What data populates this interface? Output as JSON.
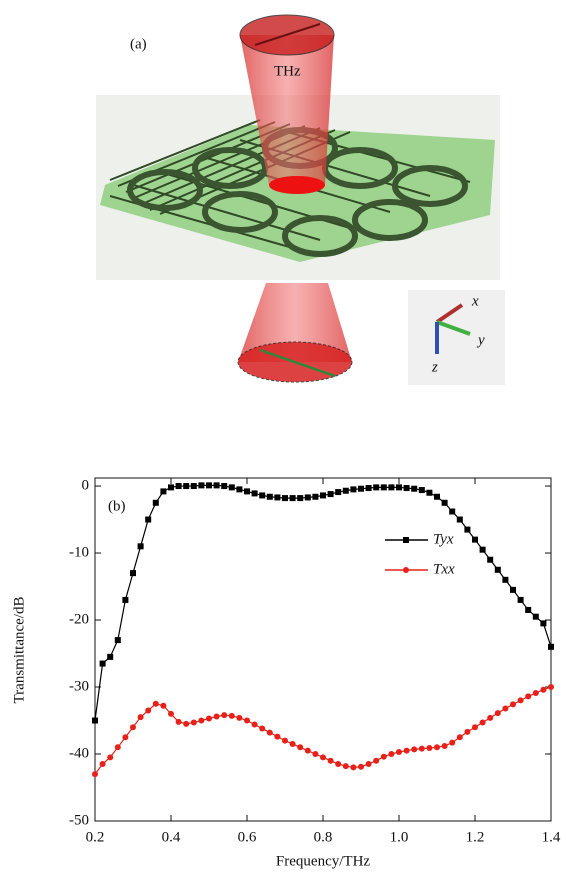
{
  "diagram": {
    "panel_label": "(a)",
    "beam_label": "THz",
    "axes": [
      "x",
      "y",
      "z"
    ]
  },
  "chart_data": {
    "type": "line",
    "panel_label": "(b)",
    "x_label": "Frequency/THz",
    "y_label": "Transmittance/dB",
    "xlim": [
      0.2,
      1.4
    ],
    "ylim": [
      -50,
      1.2
    ],
    "xticks": [
      0.2,
      0.4,
      0.6,
      0.8,
      {
        "value": 1,
        "label": "1.0"
      },
      1.2,
      1.4
    ],
    "yticks": [
      0,
      -10,
      -20,
      -30,
      -40,
      -50
    ],
    "legend": "upper right",
    "x": [
      0.2,
      0.22,
      0.24,
      0.26,
      0.28,
      0.3,
      0.32,
      0.34,
      0.36,
      0.38,
      0.4,
      0.42,
      0.44,
      0.46,
      0.48,
      0.5,
      0.52,
      0.54,
      0.56,
      0.58,
      0.6,
      0.62,
      0.64,
      0.66,
      0.68,
      0.7,
      0.72,
      0.74,
      0.76,
      0.78,
      0.8,
      0.82,
      0.84,
      0.86,
      0.88,
      0.9,
      0.92,
      0.94,
      0.96,
      0.98,
      1.0,
      1.02,
      1.04,
      1.06,
      1.08,
      1.1,
      1.12,
      1.14,
      1.16,
      1.18,
      1.2,
      1.22,
      1.24,
      1.26,
      1.28,
      1.3,
      1.32,
      1.34,
      1.36,
      1.38,
      1.4
    ],
    "series": [
      {
        "name": "Tyx",
        "color": "#000000",
        "marker": "square",
        "values": [
          -35,
          -26.5,
          -25.5,
          -23,
          -17,
          -13,
          -9,
          -5,
          -2.5,
          -0.8,
          -0.2,
          0,
          0,
          0,
          0.1,
          0.1,
          0.1,
          0,
          -0.2,
          -0.5,
          -0.8,
          -1.1,
          -1.4,
          -1.6,
          -1.7,
          -1.8,
          -1.8,
          -1.8,
          -1.7,
          -1.6,
          -1.4,
          -1.2,
          -0.9,
          -0.7,
          -0.5,
          -0.4,
          -0.3,
          -0.2,
          -0.2,
          -0.2,
          -0.2,
          -0.3,
          -0.4,
          -0.6,
          -1.0,
          -1.6,
          -2.5,
          -3.8,
          -5,
          -6.5,
          -8,
          -9.5,
          -11,
          -12.5,
          -14,
          -15.5,
          -17,
          -18.5,
          -19.5,
          -20.5,
          -24
        ]
      },
      {
        "name": "Txx",
        "color": "#e8201a",
        "marker": "circle",
        "values": [
          -43,
          -41.5,
          -40.5,
          -39,
          -37.5,
          -36,
          -34.5,
          -33.5,
          -32.5,
          -32.8,
          -34,
          -35.2,
          -35.5,
          -35.3,
          -35,
          -34.7,
          -34.4,
          -34.2,
          -34.3,
          -34.6,
          -35,
          -35.6,
          -36.2,
          -36.8,
          -37.4,
          -38,
          -38.5,
          -39,
          -39.5,
          -40,
          -40.5,
          -41,
          -41.5,
          -41.8,
          -42,
          -41.9,
          -41.5,
          -41,
          -40.4,
          -40,
          -39.7,
          -39.5,
          -39.3,
          -39.2,
          -39.1,
          -39,
          -38.8,
          -38.3,
          -37.5,
          -36.7,
          -36,
          -35.3,
          -34.6,
          -33.9,
          -33.2,
          -32.6,
          -32,
          -31.4,
          -30.9,
          -30.4,
          -30
        ]
      }
    ]
  }
}
